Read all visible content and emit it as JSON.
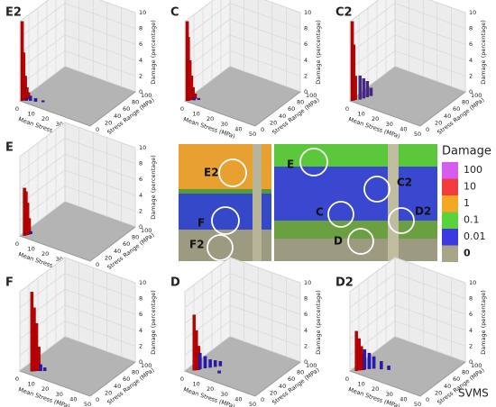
{
  "axes": {
    "x_label": "Mean Stress (MPa)",
    "y_label": "Stress Range (MPa)",
    "z_label": "Damage (percentage)",
    "xlim": [
      0,
      50
    ],
    "ylim": [
      0,
      100
    ],
    "zlim": [
      0,
      10
    ],
    "xticks": [
      0,
      10,
      20,
      30,
      40,
      50
    ],
    "yticks": [
      0,
      20,
      40,
      60,
      80,
      100
    ],
    "zticks": [
      0,
      2,
      4,
      6,
      8,
      10
    ]
  },
  "panels": [
    {
      "label": "E2",
      "series": [
        {
          "color": "#c00000",
          "x": [
            1,
            1.5,
            2,
            2.5,
            3
          ],
          "y": [
            2,
            4,
            6,
            8,
            10
          ],
          "z": [
            10,
            6,
            3,
            1.5,
            0.8
          ]
        },
        {
          "color": "#1a1ad0",
          "x": [
            3,
            5,
            8,
            12
          ],
          "y": [
            5,
            8,
            10,
            14
          ],
          "z": [
            0.3,
            0.6,
            0.4,
            0.2
          ]
        }
      ]
    },
    {
      "label": "C",
      "series": [
        {
          "color": "#c00000",
          "x": [
            1,
            1.5,
            2,
            2.5,
            3,
            3.5
          ],
          "y": [
            2,
            3,
            5,
            7,
            9,
            12
          ],
          "z": [
            10,
            8,
            5,
            3,
            1.5,
            0.6
          ]
        },
        {
          "color": "#1a1ad0",
          "x": [
            4,
            6
          ],
          "y": [
            8,
            12
          ],
          "z": [
            0.3,
            0.2
          ]
        }
      ]
    },
    {
      "label": "C2",
      "series": [
        {
          "color": "#c00000",
          "x": [
            1,
            1.5,
            2
          ],
          "y": [
            2,
            4,
            6
          ],
          "z": [
            10,
            7,
            3
          ]
        },
        {
          "color": "#3a2a9a",
          "x": [
            4,
            5,
            6,
            7
          ],
          "y": [
            10,
            15,
            20,
            25
          ],
          "z": [
            3,
            2.5,
            2,
            1
          ]
        }
      ]
    },
    {
      "label": "E",
      "series": [
        {
          "color": "#c00000",
          "x": [
            2,
            2.5,
            3,
            3.5
          ],
          "y": [
            4,
            6,
            8,
            10
          ],
          "z": [
            6,
            5.5,
            4,
            2
          ]
        },
        {
          "color": "#1a1ad0",
          "x": [
            4
          ],
          "y": [
            12
          ],
          "z": [
            0.3
          ]
        }
      ]
    },
    {
      "label": "F",
      "series": [
        {
          "color": "#c00000",
          "x": [
            6,
            7,
            8,
            9
          ],
          "y": [
            8,
            10,
            12,
            14
          ],
          "z": [
            10,
            8,
            6,
            3
          ]
        },
        {
          "color": "#1a1ad0",
          "x": [
            10,
            12
          ],
          "y": [
            15,
            18
          ],
          "z": [
            0.8,
            0.4
          ]
        }
      ]
    },
    {
      "label": "D",
      "series": [
        {
          "color": "#c00000",
          "x": [
            4,
            5,
            6
          ],
          "y": [
            8,
            10,
            12
          ],
          "z": [
            7,
            5,
            3
          ]
        },
        {
          "color": "#1a1ad0",
          "x": [
            6,
            8,
            10,
            12,
            14,
            18
          ],
          "y": [
            15,
            20,
            25,
            30,
            35,
            20
          ],
          "z": [
            2,
            1.5,
            1,
            0.8,
            0.6,
            0.3
          ]
        }
      ]
    },
    {
      "label": "D2",
      "series": [
        {
          "color": "#c00000",
          "x": [
            3,
            4,
            5,
            6
          ],
          "y": [
            5,
            8,
            10,
            12
          ],
          "z": [
            5,
            4,
            3,
            2
          ]
        },
        {
          "color": "#1a1ad0",
          "x": [
            6,
            8,
            10,
            14,
            18
          ],
          "y": [
            14,
            18,
            22,
            26,
            30
          ],
          "z": [
            2.5,
            2,
            1.5,
            1,
            0.5
          ]
        }
      ]
    }
  ],
  "image": {
    "labels": [
      "E2",
      "F",
      "F2",
      "E",
      "C",
      "C2",
      "D2",
      "D"
    ]
  },
  "legend": {
    "title": "Damage",
    "labels": [
      "100",
      "10",
      "1",
      "0.1",
      "0.01",
      "0"
    ],
    "colors": [
      "#d65cf0",
      "#f03c3c",
      "#f5a623",
      "#5ad23c",
      "#3a3ae0",
      "#a8a488"
    ]
  },
  "footer": "SVMS"
}
